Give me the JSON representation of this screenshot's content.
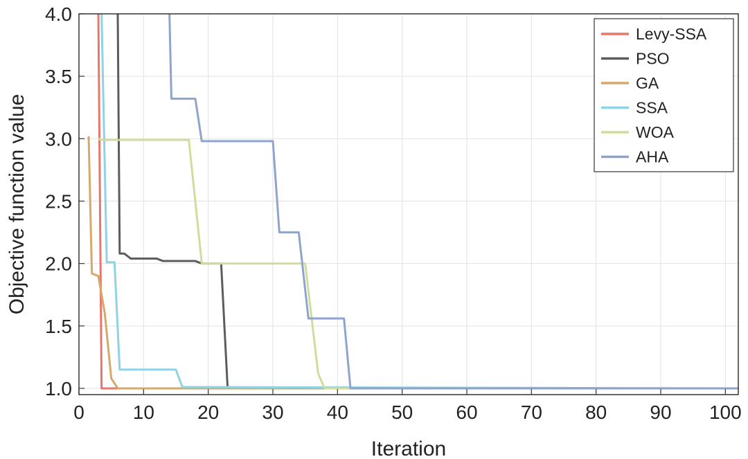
{
  "chart_data": {
    "type": "line",
    "title": "",
    "xlabel": "Iteration",
    "ylabel": "Objective function value",
    "xlim": [
      0,
      102
    ],
    "ylim": [
      0.95,
      4.0
    ],
    "xticks": [
      0,
      10,
      20,
      30,
      40,
      50,
      60,
      70,
      80,
      90,
      100
    ],
    "yticks": [
      1.0,
      1.5,
      2.0,
      2.5,
      3.0,
      3.5,
      4.0
    ],
    "ytick_labels": [
      "1.0",
      "1.5",
      "2.0",
      "2.5",
      "3.0",
      "3.5",
      "4.0"
    ],
    "grid": true,
    "legend_position": "top-right",
    "series": [
      {
        "name": "Levy-SSA",
        "color": "#e8766b",
        "x": [
          3,
          3.5,
          102
        ],
        "y": [
          4.0,
          1.0,
          1.0
        ]
      },
      {
        "name": "PSO",
        "color": "#5c5c5c",
        "x": [
          6,
          6.3,
          7,
          8,
          12,
          13,
          18,
          19,
          22,
          23,
          102
        ],
        "y": [
          4.0,
          2.08,
          2.08,
          2.04,
          2.04,
          2.02,
          2.02,
          2.0,
          2.0,
          1.0,
          1.0
        ]
      },
      {
        "name": "GA",
        "color": "#d4a96a",
        "x": [
          1.5,
          2,
          3,
          4,
          5,
          6,
          10,
          102
        ],
        "y": [
          3.02,
          1.92,
          1.9,
          1.6,
          1.08,
          1.0,
          1.0,
          1.0
        ]
      },
      {
        "name": "SSA",
        "color": "#8fd2e6",
        "x": [
          3.5,
          4.3,
          5.5,
          6.3,
          15,
          16,
          20,
          102
        ],
        "y": [
          4.0,
          2.01,
          2.01,
          1.15,
          1.15,
          1.01,
          1.01,
          1.0
        ]
      },
      {
        "name": "WOA",
        "color": "#cedd9b",
        "x": [
          3,
          3.5,
          17,
          19,
          35,
          37,
          38,
          102
        ],
        "y": [
          3.0,
          2.99,
          2.99,
          2.0,
          2.0,
          1.12,
          1.0,
          1.0
        ]
      },
      {
        "name": "AHA",
        "color": "#8fa4cc",
        "x": [
          14,
          14.3,
          18,
          19,
          30,
          31,
          34,
          35.5,
          41,
          42,
          102
        ],
        "y": [
          4.0,
          3.32,
          3.32,
          2.98,
          2.98,
          2.25,
          2.25,
          1.56,
          1.56,
          1.0,
          1.0
        ]
      }
    ]
  }
}
